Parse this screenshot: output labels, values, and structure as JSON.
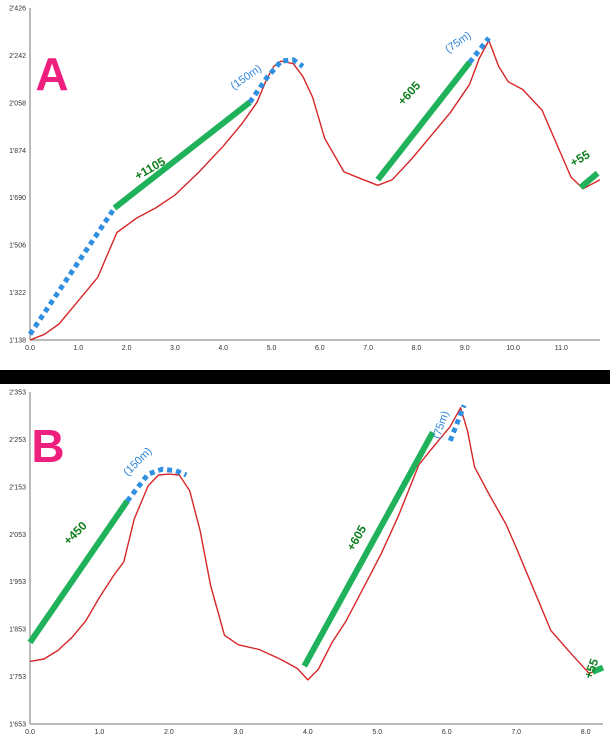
{
  "colors": {
    "profile": "#d62728",
    "climb": "#1fb25a",
    "segment": "#2f8fe0",
    "letter": "#ef1f7e",
    "gain_text": "#0e7e1e",
    "dist_text": "#2b86d8"
  },
  "chart_data": [
    {
      "type": "line",
      "title": "A",
      "xlabel": "",
      "ylabel": "",
      "xlim": [
        0,
        11.8
      ],
      "ylim": [
        1138,
        2426
      ],
      "x_ticks": [
        "0.0",
        "1.0",
        "2.0",
        "3.0",
        "4.0",
        "5.0",
        "6.0",
        "7.0",
        "8.0",
        "9.0",
        "10.0",
        "11.0"
      ],
      "y_ticks": [
        "1'138",
        "1'322",
        "1'506",
        "1'690",
        "1'874",
        "2'058",
        "2'242",
        "2'426"
      ],
      "series": [
        {
          "x": [
            0.0,
            0.3,
            0.6,
            1.0,
            1.4,
            1.8,
            2.2,
            2.6,
            3.0,
            3.5,
            4.0,
            4.4,
            4.7,
            4.9,
            5.05,
            5.2,
            5.45,
            5.65,
            5.85,
            6.1,
            6.5,
            6.9,
            7.2,
            7.5,
            7.9,
            8.3,
            8.7,
            9.1,
            9.3,
            9.5,
            9.7,
            9.9,
            10.2,
            10.6,
            10.9,
            11.2,
            11.45,
            11.8
          ],
          "y": [
            1138,
            1160,
            1200,
            1290,
            1380,
            1555,
            1610,
            1650,
            1700,
            1790,
            1890,
            1980,
            2060,
            2150,
            2200,
            2220,
            2210,
            2160,
            2080,
            1920,
            1790,
            1760,
            1738,
            1760,
            1840,
            1930,
            2020,
            2130,
            2230,
            2300,
            2200,
            2140,
            2110,
            2030,
            1900,
            1770,
            1725,
            1760
          ]
        }
      ],
      "annotations": [
        {
          "kind": "climb",
          "label": "+1105",
          "x": [
            1.75,
            4.55
          ],
          "y": [
            1650,
            2060
          ]
        },
        {
          "kind": "climb",
          "label": "+605",
          "x": [
            7.2,
            9.1
          ],
          "y": [
            1760,
            2215
          ]
        },
        {
          "kind": "climb",
          "label": "+55",
          "x": [
            11.4,
            11.75
          ],
          "y": [
            1730,
            1785
          ]
        },
        {
          "kind": "segment",
          "label": "",
          "x": [
            0.0,
            1.75
          ],
          "y": [
            1160,
            1650
          ]
        },
        {
          "kind": "segment",
          "label": "(150m)",
          "x": [
            4.55,
            4.9,
            5.2,
            5.45,
            5.65
          ],
          "y": [
            2060,
            2155,
            2220,
            2225,
            2200
          ]
        },
        {
          "kind": "segment",
          "label": "(75m)",
          "x": [
            9.1,
            9.5
          ],
          "y": [
            2215,
            2310
          ]
        }
      ]
    },
    {
      "type": "line",
      "title": "B",
      "xlabel": "",
      "ylabel": "",
      "xlim": [
        0,
        8.25
      ],
      "ylim": [
        1653,
        2353
      ],
      "x_ticks": [
        "0.0",
        "1.0",
        "2.0",
        "3.0",
        "4.0",
        "5.0",
        "6.0",
        "7.0",
        "8.0"
      ],
      "y_ticks": [
        "1'653",
        "1'753",
        "1'853",
        "1'953",
        "2'053",
        "2'153",
        "2'253",
        "2'353"
      ],
      "series": [
        {
          "x": [
            0.0,
            0.2,
            0.4,
            0.6,
            0.8,
            1.0,
            1.2,
            1.35,
            1.5,
            1.7,
            1.85,
            2.0,
            2.15,
            2.3,
            2.45,
            2.6,
            2.8,
            3.0,
            3.3,
            3.6,
            3.85,
            4.0,
            4.15,
            4.35,
            4.55,
            4.8,
            5.05,
            5.3,
            5.6,
            5.85,
            6.05,
            6.2,
            6.3,
            6.4,
            6.6,
            6.85,
            7.0,
            7.2,
            7.5,
            7.8,
            8.05,
            8.25
          ],
          "y": [
            1785,
            1790,
            1808,
            1835,
            1870,
            1920,
            1965,
            1995,
            2085,
            2155,
            2178,
            2180,
            2178,
            2145,
            2060,
            1945,
            1840,
            1820,
            1810,
            1790,
            1770,
            1746,
            1768,
            1825,
            1870,
            1940,
            2010,
            2090,
            2200,
            2245,
            2280,
            2320,
            2270,
            2195,
            2140,
            2075,
            2025,
            1955,
            1850,
            1800,
            1760,
            1770
          ]
        }
      ],
      "annotations": [
        {
          "kind": "climb",
          "label": "+450",
          "x": [
            0.0,
            1.4
          ],
          "y": [
            1825,
            2123
          ]
        },
        {
          "kind": "climb",
          "label": "+605",
          "x": [
            3.95,
            5.8
          ],
          "y": [
            1775,
            2268
          ]
        },
        {
          "kind": "climb",
          "label": "+55",
          "x": [
            8.1,
            8.25
          ],
          "y": [
            1763,
            1772
          ]
        },
        {
          "kind": "segment",
          "label": "(150m)",
          "x": [
            1.4,
            1.7,
            1.9,
            2.1,
            2.25
          ],
          "y": [
            2123,
            2180,
            2190,
            2187,
            2178
          ]
        },
        {
          "kind": "segment",
          "label": "(75m)",
          "x": [
            6.05,
            6.25
          ],
          "y": [
            2250,
            2325
          ]
        }
      ]
    }
  ]
}
